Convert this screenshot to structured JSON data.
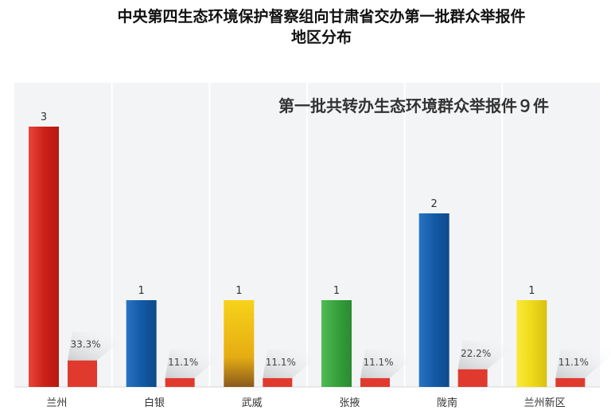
{
  "title_line1": "中央第四生态环境保护督察组向甘肃省交办第一批群众举报件",
  "title_line2": "地区分布",
  "chart_data": {
    "type": "bar",
    "annotation": "第一批共转办生态环境群众举报件９件",
    "categories": [
      "兰州",
      "白银",
      "武威",
      "张掖",
      "陇南",
      "兰州新区"
    ],
    "series": [
      {
        "values": [
          3,
          1,
          1,
          1,
          2,
          1
        ]
      },
      {
        "values": [
          33.3,
          11.1,
          11.1,
          11.1,
          22.2,
          11.1
        ],
        "format": "%"
      }
    ],
    "count_labels": [
      "3",
      "1",
      "1",
      "1",
      "2",
      "1"
    ],
    "percent_labels": [
      "33.3%",
      "11.1%",
      "11.1%",
      "11.1%",
      "22.2%",
      "11.1%"
    ],
    "ylim": [
      0,
      3
    ],
    "percent_ylim": [
      0,
      100
    ],
    "grid": false,
    "colors": {
      "count_bars": [
        "#d42a22",
        "#1b5faa",
        "#f1c40f",
        "#3cab45",
        "#1b5faa",
        "#f3e31b"
      ],
      "percent_bars": "#e03a2f",
      "panel_background": "#f3f4f6"
    }
  }
}
